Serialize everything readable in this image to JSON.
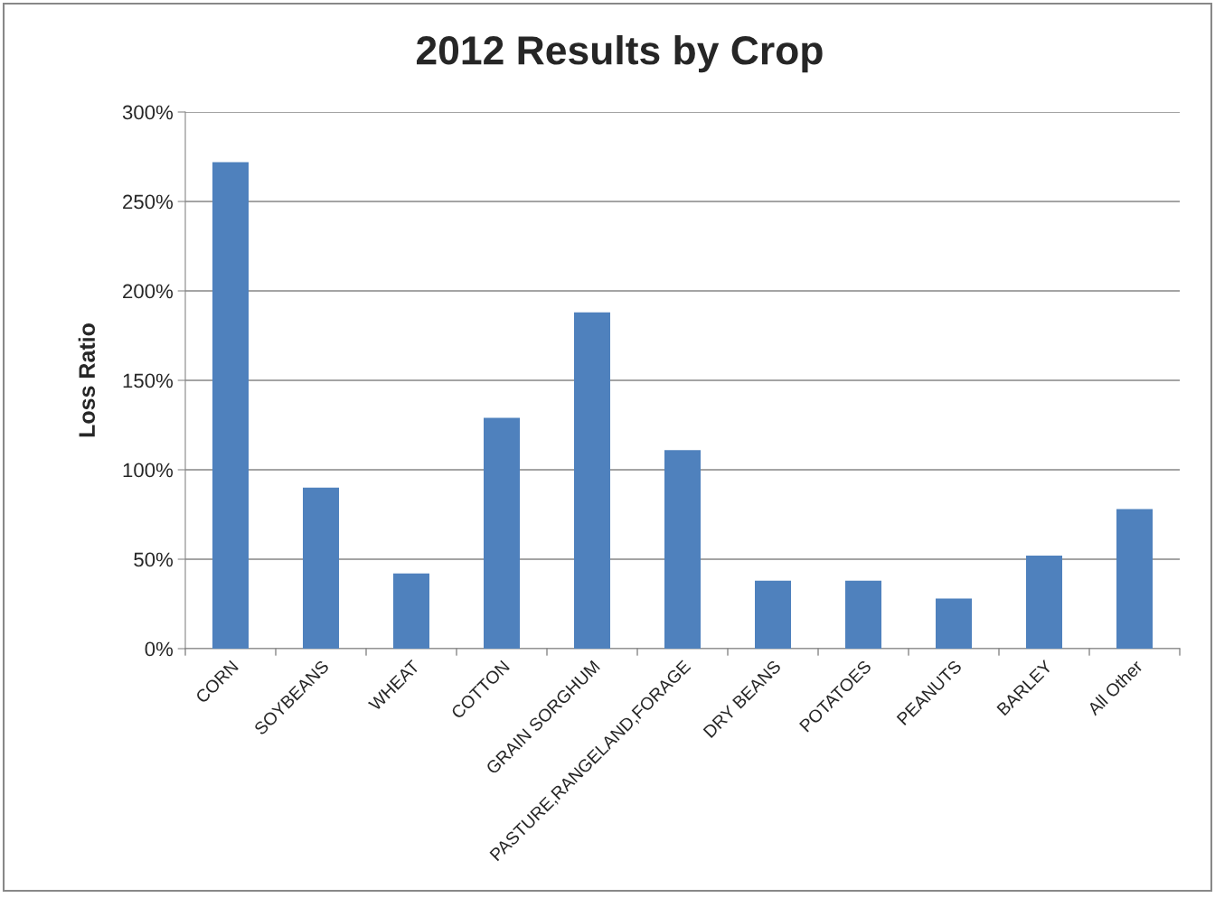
{
  "chart_data": {
    "type": "bar",
    "title": "2012 Results by Crop",
    "ylabel": "Loss Ratio",
    "categories": [
      "CORN",
      "SOYBEANS",
      "WHEAT",
      "COTTON",
      "GRAIN SORGHUM",
      "PASTURE,RANGELAND,FORAGE",
      "DRY BEANS",
      "POTATOES",
      "PEANUTS",
      "BARLEY",
      "All Other"
    ],
    "values": [
      272,
      90,
      42,
      129,
      188,
      111,
      38,
      38,
      28,
      52,
      78
    ],
    "color": "#4f81bd",
    "ylim": [
      0,
      300
    ],
    "yticks": [
      {
        "value": 0,
        "label": "0%"
      },
      {
        "value": 50,
        "label": "50%"
      },
      {
        "value": 100,
        "label": "100%"
      },
      {
        "value": 150,
        "label": "150%"
      },
      {
        "value": 200,
        "label": "200%"
      },
      {
        "value": 250,
        "label": "250%"
      },
      {
        "value": 300,
        "label": "300%"
      }
    ],
    "grid": "y",
    "legend": false
  }
}
